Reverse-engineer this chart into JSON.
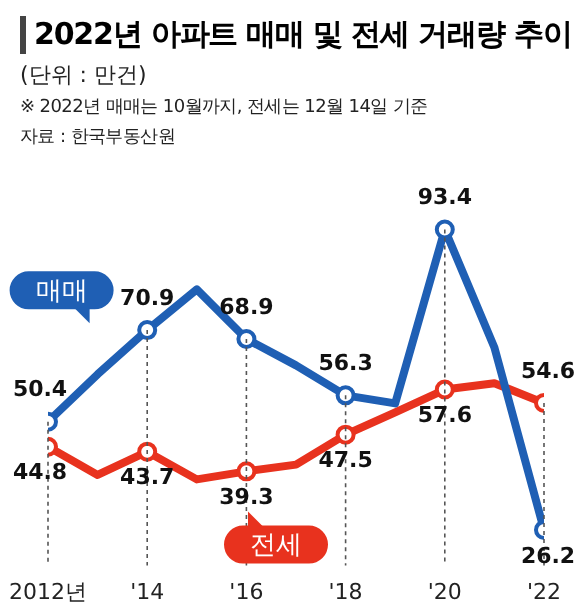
{
  "chart_data": {
    "type": "line",
    "title": "2022년 아파트 매매 및 전세 거래량 추이",
    "subtitle": "(단위 : 만건)",
    "annotations": [
      "※ 2022년 매매는 10월까지, 전세는 12월 14일 기준",
      "자료 : 한국부동산원"
    ],
    "x": [
      2012,
      2013,
      2014,
      2015,
      2016,
      2017,
      2018,
      2019,
      2020,
      2021,
      2022
    ],
    "xlim": [
      2012,
      2022
    ],
    "xticks": [
      {
        "value": 2012,
        "label": "2012년"
      },
      {
        "value": 2014,
        "label": "'14"
      },
      {
        "value": 2016,
        "label": "'16"
      },
      {
        "value": 2018,
        "label": "'18"
      },
      {
        "value": 2020,
        "label": "'20"
      },
      {
        "value": 2022,
        "label": "'22"
      }
    ],
    "series": [
      {
        "name": "매매",
        "color": "#1f5fb4",
        "values": [
          50.4,
          61,
          70.9,
          80,
          68.9,
          63,
          56.3,
          54.5,
          93.4,
          67,
          26.2
        ],
        "value_labels": [
          "50.4",
          null,
          "70.9",
          null,
          "68.9",
          null,
          "56.3",
          null,
          "93.4",
          null,
          "26.2"
        ]
      },
      {
        "name": "전세",
        "color": "#e8321e",
        "values": [
          44.8,
          38.5,
          43.7,
          37.5,
          39.3,
          40.8,
          47.5,
          52.5,
          57.6,
          59,
          54.6
        ],
        "value_labels": [
          "44.8",
          null,
          "43.7",
          null,
          "39.3",
          null,
          "47.5",
          null,
          "57.6",
          null,
          "54.6"
        ]
      }
    ],
    "marker": "circle",
    "grid": "x",
    "legend": "left"
  }
}
